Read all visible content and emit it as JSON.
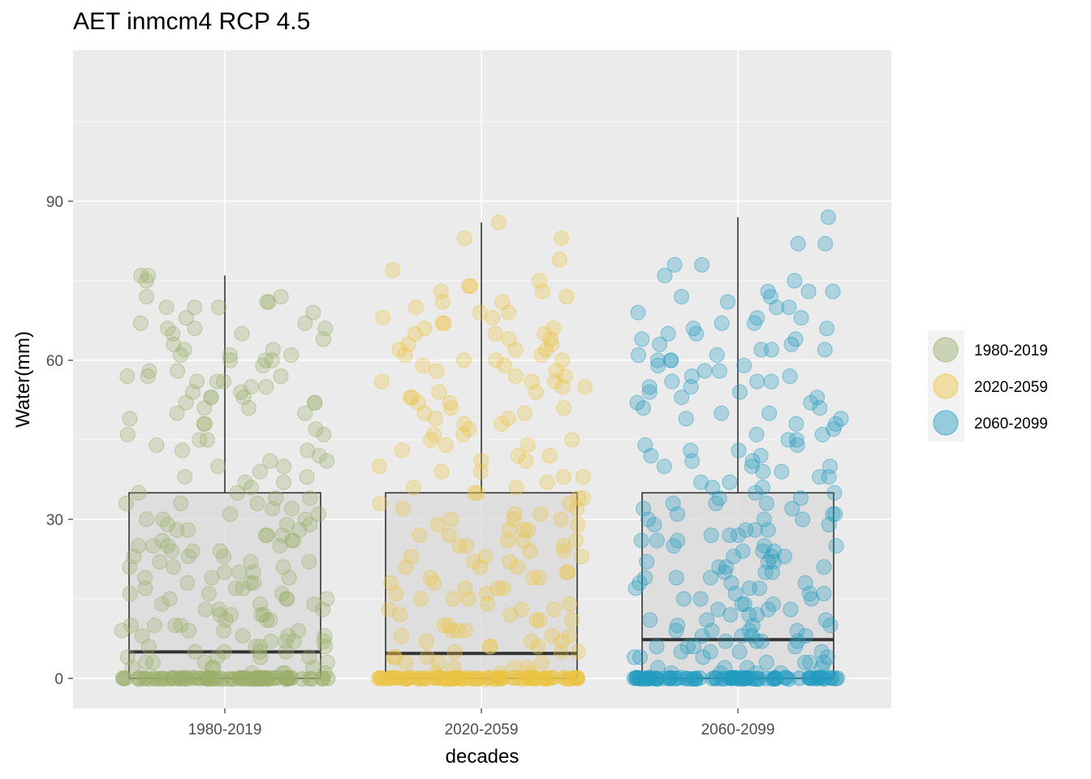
{
  "chart_data": {
    "type": "box-jitter",
    "title": "AET inmcm4 RCP 4.5",
    "xlabel": "decades",
    "ylabel": "Water(mm)",
    "categories": [
      "1980-2019",
      "2020-2059",
      "2060-2099"
    ],
    "ylim": [
      -6,
      118
    ],
    "yticks": [
      0,
      30,
      60,
      90
    ],
    "grid": true,
    "legend_position": "right",
    "colors": {
      "1980-2019": "#9aae6a",
      "2020-2059": "#ebc342",
      "2060-2099": "#239cc1",
      "panel_background": "#ebebeb",
      "grid": "#ffffff",
      "box_fill": "#d9d9d9",
      "box_line": "#333333"
    },
    "boxes": [
      {
        "category": "1980-2019",
        "min": 0,
        "q1": 0,
        "median": 5,
        "q3": 35,
        "max": 76
      },
      {
        "category": "2020-2059",
        "min": 0,
        "q1": 0,
        "median": 4.7,
        "q3": 35,
        "max": 86
      },
      {
        "category": "2060-2099",
        "min": 0,
        "q1": 0,
        "median": 7.3,
        "q3": 35,
        "max": 87
      }
    ],
    "points": {
      "1980-2019": {
        "count_at_zero": 80,
        "values": [
          76,
          76,
          75,
          72,
          72,
          71,
          71,
          70,
          70,
          70,
          69,
          68,
          67,
          67,
          66,
          66,
          66,
          65,
          65,
          64,
          63,
          62,
          62,
          61,
          61,
          61,
          60,
          60,
          60,
          59,
          58,
          58,
          57,
          57,
          57,
          56,
          56,
          56,
          55,
          55,
          54,
          54,
          53,
          53,
          53,
          52,
          52,
          52,
          51,
          51,
          50,
          50,
          49,
          48,
          48,
          47,
          46,
          46,
          45,
          45,
          44,
          43,
          43,
          42,
          41,
          41,
          40,
          40,
          39,
          38,
          38,
          37,
          37,
          36,
          35,
          35,
          34,
          34,
          33,
          33,
          33,
          32,
          32,
          31,
          31,
          30,
          30,
          30,
          29,
          29,
          29,
          28,
          28,
          28,
          27,
          27,
          27,
          26,
          26,
          26,
          25,
          25,
          25,
          25,
          24,
          24,
          24,
          23,
          23,
          23,
          22,
          22,
          22,
          21,
          21,
          21,
          20,
          20,
          20,
          19,
          19,
          19,
          18,
          18,
          18,
          17,
          17,
          17,
          16,
          16,
          16,
          15,
          15,
          15,
          15,
          14,
          14,
          14,
          13,
          13,
          13,
          12,
          12,
          12,
          12,
          11,
          11,
          11,
          10,
          10,
          10,
          10,
          9,
          9,
          9,
          9,
          8,
          8,
          8,
          8,
          7,
          7,
          7,
          7,
          6,
          6,
          6,
          6,
          5,
          5,
          5,
          5,
          4,
          4,
          4,
          4,
          3,
          3,
          3,
          3,
          2,
          2,
          2,
          2,
          1,
          1,
          1,
          1
        ]
      },
      "2020-2059": {
        "count_at_zero": 80,
        "values": [
          86,
          83,
          83,
          79,
          77,
          75,
          74,
          74,
          73,
          73,
          72,
          71,
          71,
          70,
          69,
          69,
          68,
          68,
          67,
          67,
          66,
          66,
          65,
          65,
          65,
          64,
          64,
          63,
          63,
          62,
          62,
          62,
          61,
          61,
          60,
          60,
          60,
          59,
          59,
          58,
          58,
          57,
          57,
          56,
          56,
          56,
          55,
          55,
          54,
          54,
          53,
          53,
          52,
          52,
          51,
          51,
          50,
          50,
          49,
          49,
          48,
          48,
          47,
          46,
          46,
          45,
          45,
          44,
          44,
          43,
          42,
          42,
          41,
          41,
          40,
          39,
          39,
          38,
          38,
          37,
          36,
          36,
          35,
          35,
          34,
          34,
          33,
          33,
          32,
          32,
          31,
          31,
          30,
          30,
          30,
          29,
          29,
          28,
          28,
          28,
          27,
          27,
          26,
          26,
          26,
          25,
          25,
          25,
          24,
          24,
          23,
          23,
          23,
          22,
          22,
          21,
          21,
          21,
          20,
          20,
          19,
          19,
          19,
          18,
          18,
          17,
          17,
          17,
          16,
          16,
          15,
          15,
          15,
          14,
          14,
          13,
          13,
          13,
          12,
          12,
          11,
          11,
          11,
          10,
          10,
          9,
          9,
          9,
          8,
          8,
          8,
          7,
          7,
          7,
          6,
          6,
          6,
          5,
          5,
          5,
          4,
          4,
          4,
          3,
          3,
          3,
          2,
          2,
          2,
          1,
          1,
          1
        ]
      },
      "2060-2099": {
        "count_at_zero": 80,
        "values": [
          87,
          82,
          82,
          78,
          78,
          76,
          75,
          73,
          73,
          73,
          72,
          72,
          71,
          70,
          70,
          69,
          68,
          68,
          67,
          67,
          66,
          66,
          65,
          65,
          64,
          64,
          63,
          63,
          62,
          62,
          62,
          61,
          61,
          60,
          60,
          60,
          59,
          59,
          58,
          58,
          57,
          57,
          56,
          56,
          56,
          55,
          55,
          54,
          54,
          53,
          53,
          52,
          52,
          51,
          51,
          50,
          50,
          49,
          49,
          48,
          48,
          47,
          46,
          46,
          45,
          45,
          44,
          44,
          43,
          43,
          42,
          42,
          41,
          41,
          40,
          40,
          40,
          39,
          39,
          38,
          38,
          37,
          37,
          36,
          36,
          35,
          35,
          34,
          34,
          33,
          33,
          33,
          32,
          32,
          31,
          31,
          31,
          30,
          30,
          30,
          29,
          29,
          28,
          28,
          28,
          27,
          27,
          27,
          26,
          26,
          26,
          25,
          25,
          25,
          24,
          24,
          24,
          23,
          23,
          23,
          22,
          22,
          22,
          21,
          21,
          21,
          20,
          20,
          20,
          19,
          19,
          19,
          18,
          18,
          18,
          17,
          17,
          17,
          16,
          16,
          16,
          15,
          15,
          15,
          14,
          14,
          14,
          13,
          13,
          13,
          12,
          12,
          12,
          11,
          11,
          11,
          10,
          10,
          10,
          9,
          9,
          9,
          9,
          8,
          8,
          8,
          8,
          7,
          7,
          7,
          7,
          6,
          6,
          6,
          6,
          5,
          5,
          5,
          5,
          4,
          4,
          4,
          4,
          3,
          3,
          3,
          3,
          2,
          2,
          2,
          2,
          1,
          1,
          1,
          1
        ]
      }
    },
    "legend": [
      "1980-2019",
      "2020-2059",
      "2060-2099"
    ]
  }
}
